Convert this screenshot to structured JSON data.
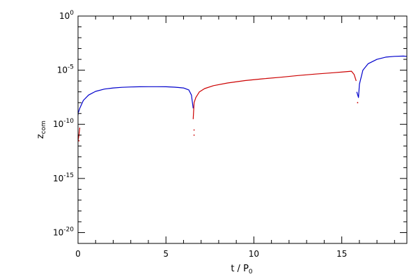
{
  "chart_data": {
    "type": "line",
    "title": "",
    "xlabel": "t / P",
    "xlabel_sub": "0",
    "ylabel": "z",
    "ylabel_sub": "com",
    "yscale": "log",
    "xlim": [
      0,
      18.7
    ],
    "ylim_exponents": [
      -21,
      0
    ],
    "ylim": [
      1e-21,
      1
    ],
    "grid": false,
    "x_ticks": [
      {
        "value": 0,
        "label": "0"
      },
      {
        "value": 5,
        "label": "5"
      },
      {
        "value": 10,
        "label": "10"
      },
      {
        "value": 15,
        "label": "15"
      }
    ],
    "y_ticks": [
      {
        "exponent": 0,
        "base": "10",
        "sup": "0"
      },
      {
        "exponent": -5,
        "base": "10",
        "sup": "-5"
      },
      {
        "exponent": -10,
        "base": "10",
        "sup": "-10"
      },
      {
        "exponent": -15,
        "base": "10",
        "sup": "-15"
      },
      {
        "exponent": -20,
        "base": "10",
        "sup": "-20"
      }
    ],
    "series": [
      {
        "color": "#0000cc",
        "segments": [
          [
            [
              0.0,
              1e-09
            ],
            [
              0.1,
              3e-09
            ],
            [
              0.3,
              1.6e-08
            ],
            [
              0.6,
              5e-08
            ],
            [
              1.0,
              1.1e-07
            ],
            [
              1.5,
              1.8e-07
            ],
            [
              2.0,
              2.3e-07
            ],
            [
              2.5,
              2.6e-07
            ],
            [
              3.0,
              2.8e-07
            ],
            [
              3.5,
              2.95e-07
            ],
            [
              4.0,
              3e-07
            ],
            [
              4.5,
              3e-07
            ],
            [
              5.0,
              2.95e-07
            ],
            [
              5.5,
              2.7e-07
            ],
            [
              6.0,
              2.3e-07
            ],
            [
              6.3,
              1.5e-07
            ],
            [
              6.45,
              5e-08
            ],
            [
              6.55,
              3e-09
            ]
          ],
          [
            [
              15.85,
              1e-07
            ],
            [
              15.95,
              3e-08
            ],
            [
              16.0,
              5e-07
            ],
            [
              16.2,
              1e-05
            ],
            [
              16.5,
              4e-05
            ],
            [
              17.0,
              0.0001
            ],
            [
              17.5,
              0.00016
            ],
            [
              18.0,
              0.00019
            ],
            [
              18.5,
              0.0002
            ],
            [
              18.7,
              0.00019
            ]
          ]
        ]
      },
      {
        "color": "#cc0000",
        "segments": [
          [
            [
              0.0,
              3e-12
            ],
            [
              0.05,
              1e-11
            ],
            [
              0.1,
              5e-11
            ]
          ],
          [
            [
              6.55,
              3e-10
            ],
            [
              6.6,
              1e-08
            ],
            [
              6.7,
              3e-08
            ],
            [
              6.9,
              1e-07
            ],
            [
              7.2,
              2e-07
            ],
            [
              7.7,
              3.7e-07
            ],
            [
              8.5,
              6.5e-07
            ],
            [
              9.5,
              1.1e-06
            ],
            [
              10.5,
              1.6e-06
            ],
            [
              11.5,
              2.2e-06
            ],
            [
              12.5,
              3.2e-06
            ],
            [
              13.5,
              4.4e-06
            ],
            [
              14.5,
              5.8e-06
            ],
            [
              15.2,
              7.1e-06
            ],
            [
              15.55,
              8e-06
            ],
            [
              15.7,
              4e-06
            ],
            [
              15.82,
              1e-06
            ]
          ]
        ]
      }
    ],
    "dots": [
      {
        "color": "#cc0000",
        "x": 6.6,
        "y": 1e-11
      },
      {
        "color": "#cc0000",
        "x": 6.6,
        "y": 3e-11
      },
      {
        "color": "#cc0000",
        "x": 0.05,
        "y": 3e-12
      },
      {
        "color": "#cc0000",
        "x": 15.9,
        "y": 1e-08
      },
      {
        "color": "#0000cc",
        "x": 0.0,
        "y": 8e-10
      }
    ]
  }
}
